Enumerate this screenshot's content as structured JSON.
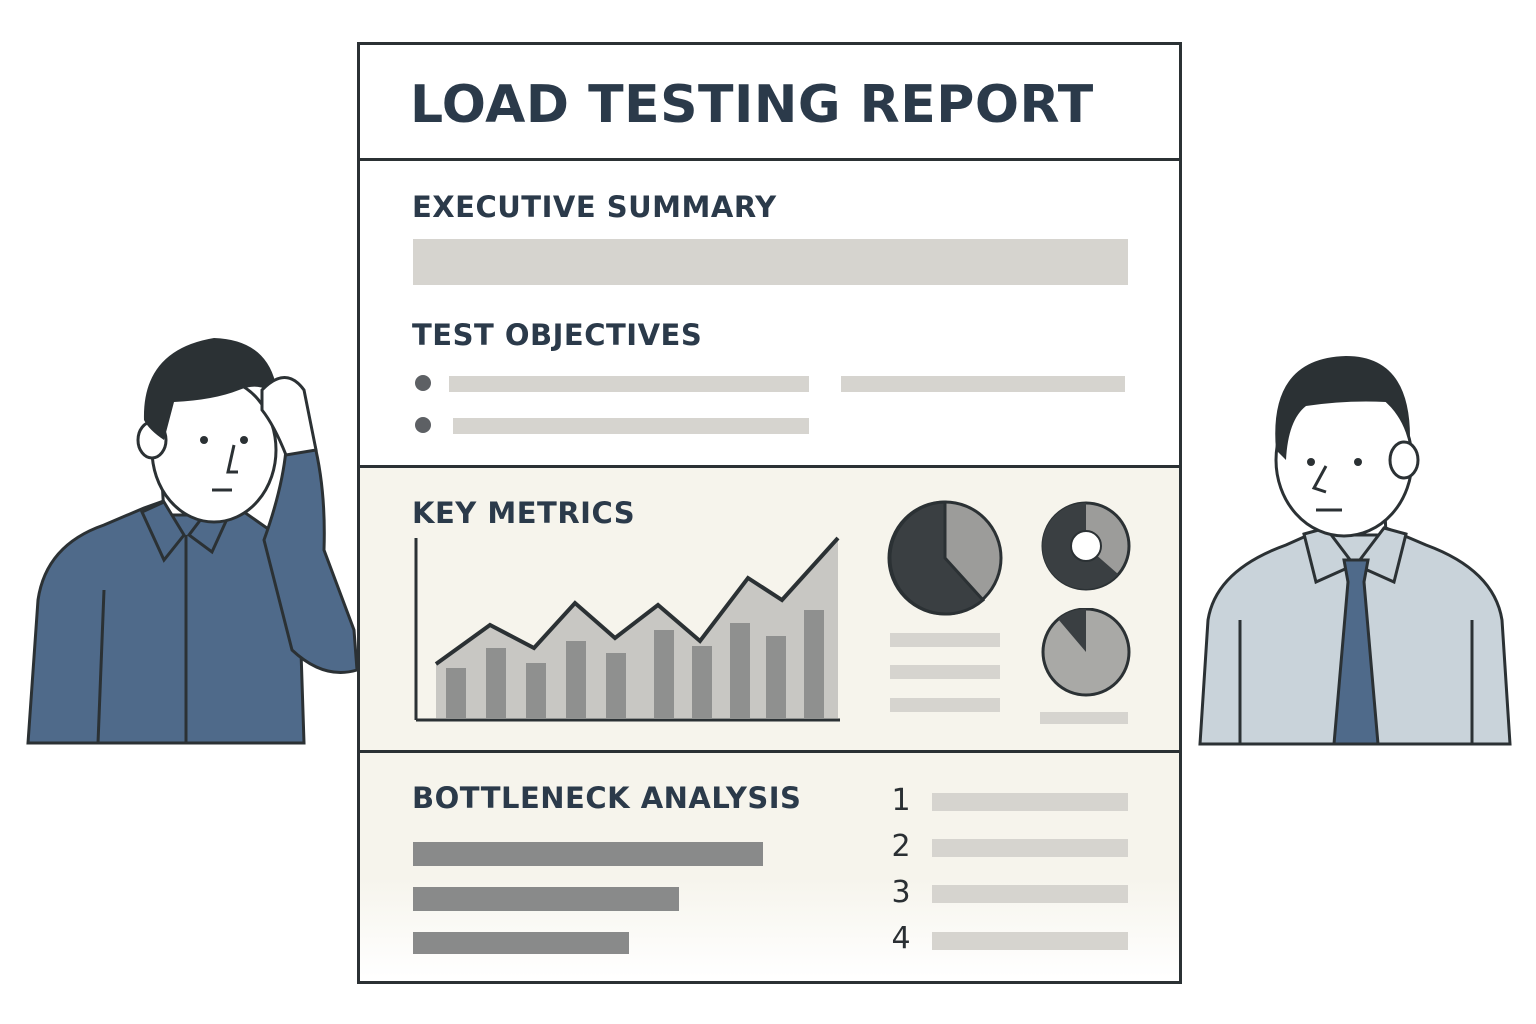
{
  "report": {
    "title": "LOAD TESTING REPORT",
    "sections": {
      "executive_summary": "EXECUTIVE SUMMARY",
      "test_objectives": "TEST OBJECTIVES",
      "key_metrics": "KEY METRICS",
      "bottleneck_analysis": "BOTTLENECK ANALYSIS"
    },
    "bottleneck_list": [
      "1",
      "2",
      "3",
      "4"
    ]
  },
  "colors": {
    "ink": "#2b3134",
    "heading": "#2b3a4a",
    "metrics_bg": "#f6f4ec",
    "shirt_left": "#4f6a8a",
    "shirt_right": "#c9d3da",
    "tie": "#4f6a8a",
    "placeholder_light": "#d6d4cf",
    "placeholder_dark": "#898a8a"
  },
  "icons": {
    "left_person": "person-thinking-icon",
    "right_person": "person-neutral-icon"
  }
}
